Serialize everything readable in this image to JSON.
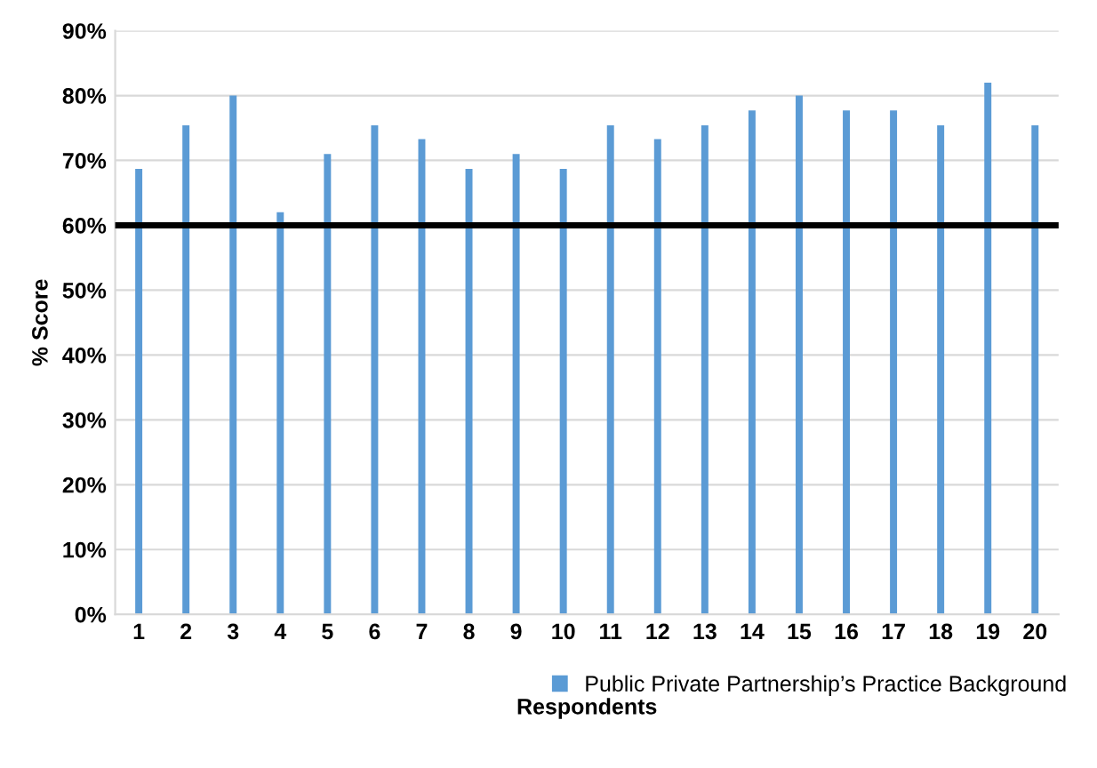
{
  "chart_data": {
    "type": "bar",
    "xlabel": "Respondents",
    "ylabel": "% Score",
    "categories": [
      "1",
      "2",
      "3",
      "4",
      "5",
      "6",
      "7",
      "8",
      "9",
      "10",
      "11",
      "12",
      "13",
      "14",
      "15",
      "16",
      "17",
      "18",
      "19",
      "20"
    ],
    "series": [
      {
        "name": "Public Private Partnership’s Practice Background",
        "color": "#5b9bd5",
        "values": [
          68.7,
          75.4,
          80,
          62,
          71,
          75.4,
          73.3,
          68.7,
          71,
          68.7,
          75.4,
          73.3,
          75.4,
          77.7,
          80,
          77.7,
          77.7,
          75.4,
          82,
          75.4
        ]
      }
    ],
    "ylim": [
      0,
      90
    ],
    "yticks": [
      {
        "value": 0,
        "label": "0%"
      },
      {
        "value": 10,
        "label": "10%"
      },
      {
        "value": 20,
        "label": "20%"
      },
      {
        "value": 30,
        "label": "30%"
      },
      {
        "value": 40,
        "label": "40%"
      },
      {
        "value": 50,
        "label": "50%"
      },
      {
        "value": 60,
        "label": "60%"
      },
      {
        "value": 70,
        "label": "70%"
      },
      {
        "value": 80,
        "label": "80%"
      },
      {
        "value": 90,
        "label": "90%"
      }
    ],
    "grid": "y",
    "legend": "bottom right",
    "ref_lines": [
      {
        "axis": "y",
        "value": 60,
        "color": "#000000"
      }
    ]
  }
}
